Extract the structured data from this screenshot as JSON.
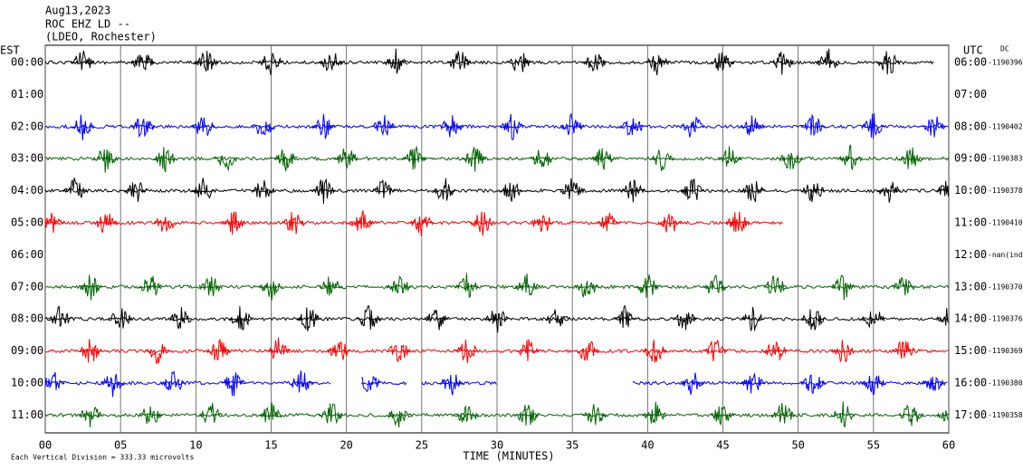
{
  "chart_data": {
    "type": "helicorder",
    "title": [
      "Aug13,2023",
      "ROC EHZ LD --",
      "(LDEO, Rochester)"
    ],
    "left_axis_label": "EST",
    "right_axis_label": "UTC",
    "dc_label": "DC",
    "xlabel": "TIME (MINUTES)",
    "xlim": [
      0,
      60
    ],
    "xticks": [
      {
        "value": 0,
        "label": "00"
      },
      {
        "value": 5,
        "label": "05"
      },
      10,
      15,
      20,
      25,
      30,
      35,
      40,
      45,
      50,
      55,
      60
    ],
    "footnote": "Each Vertical Division =  333.33 microvolts",
    "rows": [
      {
        "local": "00:00",
        "utc": "06:00",
        "dc": "-1190396",
        "color": "#000000",
        "segments": [
          [
            0,
            59
          ]
        ],
        "bursts": [
          2.5,
          6.5,
          10.7,
          15,
          19,
          23.3,
          27.5,
          31.5,
          36.5,
          40.7,
          45,
          49,
          52,
          56
        ]
      },
      {
        "local": "01:00",
        "utc": "07:00",
        "color": "#000000",
        "segments": [],
        "bursts": []
      },
      {
        "local": "02:00",
        "utc": "08:00",
        "dc": "-1190402",
        "color": "#0000ff",
        "segments": [
          [
            0,
            60
          ]
        ],
        "bursts": [
          2.5,
          6.5,
          10.5,
          14.5,
          18.5,
          22.5,
          27,
          31,
          35,
          39,
          43,
          47,
          51,
          55,
          59
        ]
      },
      {
        "local": "03:00",
        "utc": "09:00",
        "dc": "-1190383",
        "color": "#006400",
        "segments": [
          [
            0,
            60
          ]
        ],
        "bursts": [
          4,
          8,
          12,
          16,
          20,
          24.5,
          28.5,
          33,
          37,
          41,
          45.5,
          49.5,
          53.5,
          57.5
        ]
      },
      {
        "local": "04:00",
        "utc": "10:00",
        "dc": "-1190378",
        "color": "#000000",
        "segments": [
          [
            0,
            60
          ]
        ],
        "bursts": [
          2,
          6,
          10.5,
          14.5,
          18.5,
          22.5,
          26.5,
          31,
          35,
          39,
          43,
          47,
          51,
          56,
          60
        ]
      },
      {
        "local": "05:00",
        "utc": "11:00",
        "dc": "-1190410",
        "color": "#ff0000",
        "segments": [
          [
            0,
            49
          ]
        ],
        "bursts": [
          0.5,
          4,
          8,
          12.5,
          16.5,
          21,
          25,
          29,
          33,
          37.5,
          41.5,
          46
        ]
      },
      {
        "local": "06:00",
        "utc": "12:00",
        "dc": "-nan(ind)",
        "color": "#000000",
        "segments": [],
        "bursts": []
      },
      {
        "local": "07:00",
        "utc": "13:00",
        "dc": "-1190370",
        "color": "#006400",
        "segments": [
          [
            0,
            60
          ]
        ],
        "bursts": [
          3,
          7,
          11,
          15,
          19,
          23.5,
          28,
          32,
          36,
          40,
          44.5,
          48.5,
          53,
          57
        ]
      },
      {
        "local": "08:00",
        "utc": "14:00",
        "dc": "-1190376",
        "color": "#000000",
        "segments": [
          [
            0,
            60
          ]
        ],
        "bursts": [
          1,
          5,
          9,
          13,
          17.5,
          21.5,
          26,
          30,
          34,
          38.5,
          42.5,
          47,
          51,
          55,
          60
        ]
      },
      {
        "local": "09:00",
        "utc": "15:00",
        "dc": "-1190369",
        "color": "#ff0000",
        "segments": [
          [
            0,
            60
          ]
        ],
        "bursts": [
          3,
          7.5,
          11.5,
          15.5,
          19.5,
          23.5,
          28,
          32,
          36,
          40.5,
          44.5,
          48.5,
          53,
          57
        ]
      },
      {
        "local": "10:00",
        "utc": "16:00",
        "dc": "-1190380",
        "color": "#0000ff",
        "segments": [
          [
            0,
            19
          ],
          [
            21,
            24
          ],
          [
            25,
            30
          ],
          [
            39,
            60
          ]
        ],
        "bursts": [
          0.5,
          4.5,
          8.5,
          12.5,
          17,
          21.5,
          27,
          43,
          47,
          51,
          55,
          59
        ]
      },
      {
        "local": "11:00",
        "utc": "17:00",
        "dc": "-1190358",
        "color": "#006400",
        "segments": [
          [
            0,
            60
          ]
        ],
        "bursts": [
          3,
          7,
          11,
          15,
          19,
          23.5,
          28,
          32,
          36.5,
          40.5,
          45,
          49,
          53,
          57.5,
          60
        ]
      }
    ]
  }
}
